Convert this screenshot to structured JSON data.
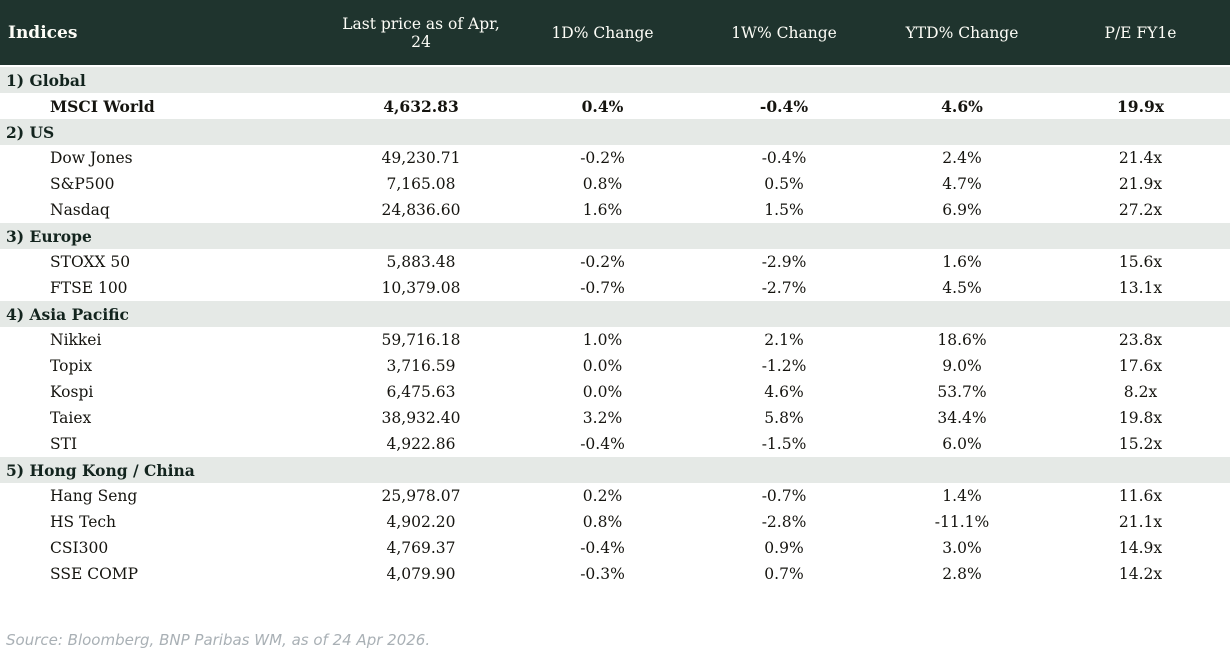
{
  "colors": {
    "header_bg": "#1f342e",
    "header_fg": "#fdfdf7",
    "section_bg": "#e5e9e6",
    "positive": "#007e35",
    "negative": "#c00d22"
  },
  "header": {
    "columns": [
      "Indices",
      "Last price as of Apr, 24",
      "1D% Change",
      "1W% Change",
      "YTD% Change",
      "P/E FY1e"
    ]
  },
  "sections": [
    {
      "label": "1) Global",
      "rows": [
        {
          "name": "MSCI World",
          "price": "4,632.83",
          "bold": true,
          "d1": {
            "v": "0.4%",
            "dir": "up"
          },
          "w1": {
            "v": "-0.4%",
            "dir": "down"
          },
          "ytd": {
            "v": "4.6%",
            "dir": "up"
          },
          "pe": "19.9x"
        }
      ]
    },
    {
      "label": "2) US",
      "rows": [
        {
          "name": "Dow Jones",
          "price": "49,230.71",
          "bold": false,
          "d1": {
            "v": "-0.2%",
            "dir": "down"
          },
          "w1": {
            "v": "-0.4%",
            "dir": "down"
          },
          "ytd": {
            "v": "2.4%",
            "dir": "up"
          },
          "pe": "21.4x"
        },
        {
          "name": "S&P500",
          "price": "7,165.08",
          "bold": false,
          "d1": {
            "v": "0.8%",
            "dir": "up"
          },
          "w1": {
            "v": "0.5%",
            "dir": "up"
          },
          "ytd": {
            "v": "4.7%",
            "dir": "up"
          },
          "pe": "21.9x"
        },
        {
          "name": "Nasdaq",
          "price": "24,836.60",
          "bold": false,
          "d1": {
            "v": "1.6%",
            "dir": "up"
          },
          "w1": {
            "v": "1.5%",
            "dir": "up"
          },
          "ytd": {
            "v": "6.9%",
            "dir": "up"
          },
          "pe": "27.2x"
        }
      ]
    },
    {
      "label": "3) Europe",
      "rows": [
        {
          "name": "STOXX 50",
          "price": "5,883.48",
          "bold": false,
          "d1": {
            "v": "-0.2%",
            "dir": "down"
          },
          "w1": {
            "v": "-2.9%",
            "dir": "down"
          },
          "ytd": {
            "v": "1.6%",
            "dir": "up"
          },
          "pe": "15.6x"
        },
        {
          "name": "FTSE 100",
          "price": "10,379.08",
          "bold": false,
          "d1": {
            "v": "-0.7%",
            "dir": "down"
          },
          "w1": {
            "v": "-2.7%",
            "dir": "down"
          },
          "ytd": {
            "v": "4.5%",
            "dir": "up"
          },
          "pe": "13.1x"
        }
      ]
    },
    {
      "label": "4) Asia Pacific",
      "rows": [
        {
          "name": "Nikkei",
          "price": "59,716.18",
          "bold": false,
          "d1": {
            "v": "1.0%",
            "dir": "up"
          },
          "w1": {
            "v": "2.1%",
            "dir": "up"
          },
          "ytd": {
            "v": "18.6%",
            "dir": "up"
          },
          "pe": "23.8x"
        },
        {
          "name": "Topix",
          "price": "3,716.59",
          "bold": false,
          "d1": {
            "v": "0.0%",
            "dir": "up"
          },
          "w1": {
            "v": "-1.2%",
            "dir": "down"
          },
          "ytd": {
            "v": "9.0%",
            "dir": "up"
          },
          "pe": "17.6x"
        },
        {
          "name": "Kospi",
          "price": "6,475.63",
          "bold": false,
          "d1": {
            "v": "0.0%",
            "dir": "down"
          },
          "w1": {
            "v": "4.6%",
            "dir": "up"
          },
          "ytd": {
            "v": "53.7%",
            "dir": "up"
          },
          "pe": "8.2x"
        },
        {
          "name": "Taiex",
          "price": "38,932.40",
          "bold": false,
          "d1": {
            "v": "3.2%",
            "dir": "up"
          },
          "w1": {
            "v": "5.8%",
            "dir": "up"
          },
          "ytd": {
            "v": "34.4%",
            "dir": "up"
          },
          "pe": "19.8x"
        },
        {
          "name": "STI",
          "price": "4,922.86",
          "bold": false,
          "d1": {
            "v": "-0.4%",
            "dir": "down"
          },
          "w1": {
            "v": "-1.5%",
            "dir": "down"
          },
          "ytd": {
            "v": "6.0%",
            "dir": "up"
          },
          "pe": "15.2x"
        }
      ]
    },
    {
      "label": "5) Hong Kong / China",
      "rows": [
        {
          "name": "Hang Seng",
          "price": "25,978.07",
          "bold": false,
          "d1": {
            "v": "0.2%",
            "dir": "up"
          },
          "w1": {
            "v": "-0.7%",
            "dir": "down"
          },
          "ytd": {
            "v": "1.4%",
            "dir": "up"
          },
          "pe": "11.6x"
        },
        {
          "name": "HS Tech",
          "price": "4,902.20",
          "bold": false,
          "d1": {
            "v": "0.8%",
            "dir": "up"
          },
          "w1": {
            "v": "-2.8%",
            "dir": "down"
          },
          "ytd": {
            "v": "-11.1%",
            "dir": "down"
          },
          "pe": "21.1x"
        },
        {
          "name": "CSI300",
          "price": "4,769.37",
          "bold": false,
          "d1": {
            "v": "-0.4%",
            "dir": "down"
          },
          "w1": {
            "v": "0.9%",
            "dir": "up"
          },
          "ytd": {
            "v": "3.0%",
            "dir": "up"
          },
          "pe": "14.9x"
        },
        {
          "name": "SSE COMP",
          "price": "4,079.90",
          "bold": false,
          "d1": {
            "v": "-0.3%",
            "dir": "down"
          },
          "w1": {
            "v": "0.7%",
            "dir": "up"
          },
          "ytd": {
            "v": "2.8%",
            "dir": "up"
          },
          "pe": "14.2x"
        }
      ]
    }
  ],
  "footer": {
    "source": "Source: Bloomberg, BNP Paribas WM, as of 24 Apr 2026."
  }
}
